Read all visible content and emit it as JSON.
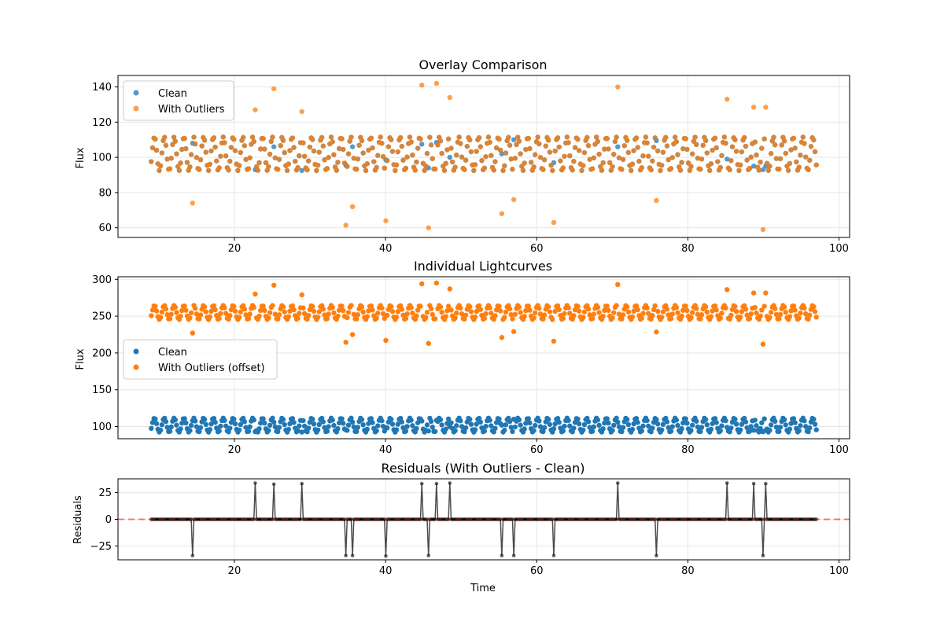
{
  "figure": {
    "background": "#ffffff"
  },
  "chart_data": [
    {
      "id": "overlay",
      "type": "scatter",
      "title": "Overlay Comparison",
      "xlabel": "",
      "ylabel": "Flux",
      "xlim": [
        4.6,
        101.4
      ],
      "ylim": [
        54.5,
        146.5
      ],
      "xticks": [
        20,
        40,
        60,
        80,
        100
      ],
      "yticks": [
        60,
        80,
        100,
        120,
        140
      ],
      "xtick_labels": [
        "20",
        "40",
        "60",
        "80",
        "100"
      ],
      "ytick_labels": [
        "60",
        "80",
        "100",
        "120",
        "140"
      ],
      "grid": true,
      "legend_position": "top-left",
      "legend": [
        {
          "label": "Clean",
          "color": "#1f77b4"
        },
        {
          "label": "With Outliers",
          "color": "#ff7f0e"
        }
      ],
      "model": {
        "t_start": 9.0,
        "t_end": 97.0,
        "n": 500,
        "baseline": 102,
        "amplitude": 9.5,
        "period": 1.3
      },
      "outliers": [
        {
          "x": 14.5,
          "clean": 108,
          "value": 74
        },
        {
          "x": 22.7,
          "clean": 93,
          "value": 127
        },
        {
          "x": 25.3,
          "clean": 106,
          "value": 139
        },
        {
          "x": 28.9,
          "clean": 92.5,
          "value": 126
        },
        {
          "x": 34.8,
          "clean": 95.5,
          "value": 61.5
        },
        {
          "x": 35.6,
          "clean": 106,
          "value": 72
        },
        {
          "x": 40.0,
          "clean": 98.5,
          "value": 64
        },
        {
          "x": 44.8,
          "clean": 107.5,
          "value": 141
        },
        {
          "x": 45.6,
          "clean": 94,
          "value": 60
        },
        {
          "x": 46.7,
          "clean": 108.5,
          "value": 142
        },
        {
          "x": 48.5,
          "clean": 100,
          "value": 134
        },
        {
          "x": 55.3,
          "clean": 102,
          "value": 68
        },
        {
          "x": 57.0,
          "clean": 110,
          "value": 76
        },
        {
          "x": 62.3,
          "clean": 97,
          "value": 63
        },
        {
          "x": 70.7,
          "clean": 106,
          "value": 140
        },
        {
          "x": 75.8,
          "clean": 109.5,
          "value": 75.5
        },
        {
          "x": 85.2,
          "clean": 99,
          "value": 133
        },
        {
          "x": 88.7,
          "clean": 95,
          "value": 128.5
        },
        {
          "x": 90.0,
          "clean": 93,
          "value": 59
        },
        {
          "x": 90.3,
          "clean": 95,
          "value": 128.5
        }
      ]
    },
    {
      "id": "individual",
      "type": "scatter",
      "title": "Individual Lightcurves",
      "xlabel": "",
      "ylabel": "Flux",
      "xlim": [
        4.6,
        101.4
      ],
      "ylim": [
        83.5,
        303.5
      ],
      "xticks": [
        20,
        40,
        60,
        80,
        100
      ],
      "yticks": [
        100,
        150,
        200,
        250,
        300
      ],
      "xtick_labels": [
        "20",
        "40",
        "60",
        "80",
        "100"
      ],
      "ytick_labels": [
        "100",
        "150",
        "200",
        "250",
        "300"
      ],
      "grid": true,
      "legend_position": "center-left",
      "legend": [
        {
          "label": "Clean",
          "color": "#1f77b4"
        },
        {
          "label": "With Outliers (offset)",
          "color": "#ff7f0e"
        }
      ],
      "offset": 153
    },
    {
      "id": "residuals",
      "type": "line",
      "title": "Residuals (With Outliers - Clean)",
      "xlabel": "Time",
      "ylabel": "Residuals",
      "xlim": [
        4.6,
        101.4
      ],
      "ylim": [
        -38,
        38
      ],
      "xticks": [
        20,
        40,
        60,
        80,
        100
      ],
      "yticks": [
        -25,
        0,
        25
      ],
      "xtick_labels": [
        "20",
        "40",
        "60",
        "80",
        "100"
      ],
      "ytick_labels": [
        "−25",
        "0",
        "25"
      ],
      "grid": true,
      "residual_line_color": "#000000",
      "zero_line_color": "#ff0000"
    }
  ],
  "colors": {
    "clean": "#1f77b4",
    "outliers": "#ff7f0e",
    "grid": "#e6e6e6"
  }
}
